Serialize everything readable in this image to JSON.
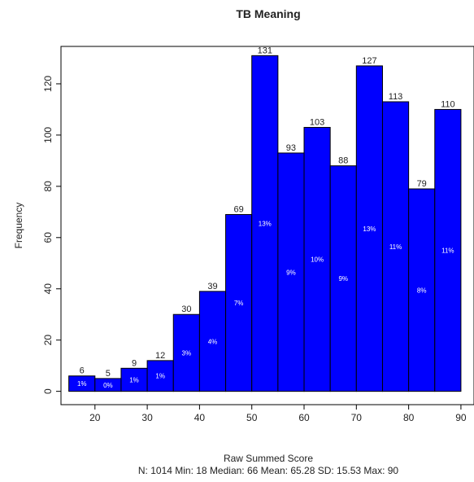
{
  "chart_data": {
    "type": "histogram",
    "title": "TB Meaning",
    "x_label": "Raw Summed Score",
    "y_label": "Frequency",
    "subtitle": "N: 1014 Min: 18 Median: 66 Mean: 65.28 SD: 15.53 Max: 90",
    "bins": [
      15,
      20,
      25,
      30,
      35,
      40,
      45,
      50,
      55,
      60,
      65,
      70,
      75,
      80,
      85,
      90
    ],
    "values": [
      6,
      5,
      9,
      12,
      30,
      39,
      69,
      131,
      93,
      103,
      88,
      127,
      113,
      79,
      110
    ],
    "percent_labels": [
      "1%",
      "0%",
      "1%",
      "1%",
      "3%",
      "4%",
      "7%",
      "13%",
      "9%",
      "10%",
      "9%",
      "13%",
      "11%",
      "8%",
      "11%"
    ],
    "color": "#0000ff",
    "xlim": [
      13.5,
      92.5
    ],
    "xticks": [
      20,
      30,
      40,
      50,
      60,
      70,
      80,
      90
    ],
    "ylim": [
      -5.2,
      134.6
    ],
    "yticks": [
      0,
      20,
      40,
      60,
      80,
      100,
      120
    ]
  }
}
